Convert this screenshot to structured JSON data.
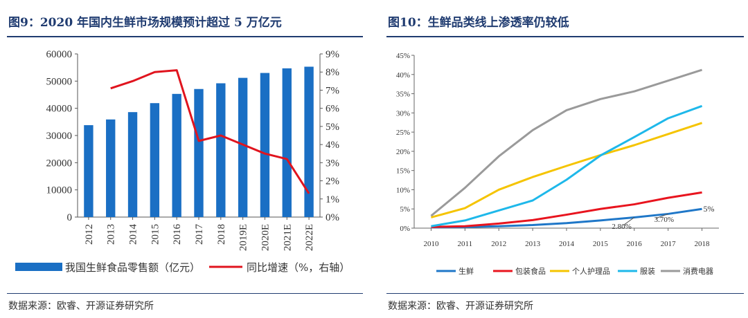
{
  "left": {
    "title": "图9：2020 年国内生鲜市场规模预计超过 5 万亿元",
    "source": "数据来源：欧睿、开源证券研究所"
  },
  "right": {
    "title": "图10：生鲜品类线上渗透率仍较低",
    "source": "数据来源：欧睿、开源证券研究所"
  },
  "colors": {
    "bar": "#1a6fc4",
    "line": "#e0141e",
    "title": "#1f3b70"
  },
  "chart_data": [
    {
      "type": "bar",
      "categories": [
        "2012",
        "2013",
        "2014",
        "2015",
        "2016",
        "2017",
        "2018",
        "2019E",
        "2020E",
        "2021E",
        "2022E"
      ],
      "series": [
        {
          "name": "我国生鲜食品零售额（亿元）",
          "axis": "left",
          "type": "bar",
          "values": [
            33800,
            35900,
            38600,
            41900,
            45300,
            47100,
            49200,
            51200,
            53000,
            54700,
            55300
          ]
        },
        {
          "name": "同比增速（%，右轴）",
          "axis": "right",
          "type": "line",
          "values": [
            null,
            7.1,
            7.5,
            8.0,
            8.1,
            4.2,
            4.5,
            4.0,
            3.5,
            3.2,
            1.3
          ]
        }
      ],
      "ylim_left": [
        0,
        60000
      ],
      "yticks_left": [
        "0",
        "10000",
        "20000",
        "30000",
        "40000",
        "50000",
        "60000"
      ],
      "ylim_right": [
        0,
        9
      ],
      "yticks_right": [
        "0%",
        "1%",
        "2%",
        "3%",
        "4%",
        "5%",
        "6%",
        "7%",
        "8%",
        "9%"
      ],
      "legend_position": "bottom"
    },
    {
      "type": "line",
      "x": [
        "2010",
        "2011",
        "2012",
        "2013",
        "2014",
        "2015",
        "2016",
        "2017",
        "2018"
      ],
      "series": [
        {
          "name": "生鲜",
          "color": "#1f77c8",
          "values": [
            0.2,
            0.3,
            0.5,
            0.8,
            1.3,
            2.0,
            2.8,
            3.7,
            5.0
          ]
        },
        {
          "name": "包装食品",
          "color": "#e8141e",
          "values": [
            0.3,
            0.5,
            1.2,
            2.1,
            3.5,
            5.0,
            6.2,
            7.9,
            9.3
          ]
        },
        {
          "name": "个人护理品",
          "color": "#f5c400",
          "values": [
            2.8,
            5.2,
            10.0,
            13.3,
            16.2,
            19.0,
            21.6,
            24.5,
            27.4
          ]
        },
        {
          "name": "服装",
          "color": "#1eb8ea",
          "values": [
            0.5,
            2.0,
            4.6,
            7.2,
            12.6,
            18.9,
            23.7,
            28.6,
            31.8
          ]
        },
        {
          "name": "消费电器",
          "color": "#9a9a9a",
          "values": [
            3.2,
            10.5,
            18.7,
            25.5,
            30.7,
            33.6,
            35.6,
            38.4,
            41.2
          ]
        }
      ],
      "annotations": [
        "2.80%",
        "3.70%",
        "5%"
      ],
      "ylim": [
        0,
        45
      ],
      "yticks": [
        "0%",
        "5%",
        "10%",
        "15%",
        "20%",
        "25%",
        "30%",
        "35%",
        "40%",
        "45%"
      ],
      "legend_position": "bottom"
    }
  ]
}
